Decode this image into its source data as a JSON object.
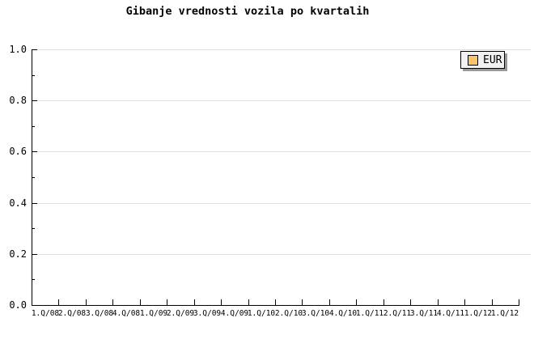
{
  "chart_data": {
    "type": "line",
    "title": "Gibanje vrednosti vozila po kvartalih",
    "xlabel": "",
    "ylabel": "",
    "categories": [
      "1.Q/08",
      "2.Q/08",
      "3.Q/08",
      "4.Q/08",
      "1.Q/09",
      "2.Q/09",
      "3.Q/09",
      "4.Q/09",
      "1.Q/10",
      "2.Q/10",
      "3.Q/10",
      "4.Q/10",
      "1.Q/11",
      "2.Q/11",
      "3.Q/11",
      "4.Q/11",
      "1.Q/12",
      "1.Q/12"
    ],
    "series": [
      {
        "name": "EUR",
        "color": "#FAC46A",
        "values": []
      }
    ],
    "ylim": [
      0.0,
      1.0
    ],
    "ytick_step": 0.2,
    "ytick_minor_step": 0.1,
    "ytick_labels": [
      "0.0",
      "0.2",
      "0.4",
      "0.6",
      "0.8",
      "1.0"
    ],
    "grid": true,
    "legend_position": "top-right"
  },
  "legend": {
    "items": [
      {
        "label": "EUR",
        "swatch_color": "#FAC46A"
      }
    ]
  },
  "colors": {
    "background": "#ffffff",
    "axis": "#000000",
    "grid": "#e0e0e0",
    "text": "#000000",
    "legend_background": "#f2f2f2",
    "legend_border": "#000000",
    "legend_shadow": "#999999"
  }
}
